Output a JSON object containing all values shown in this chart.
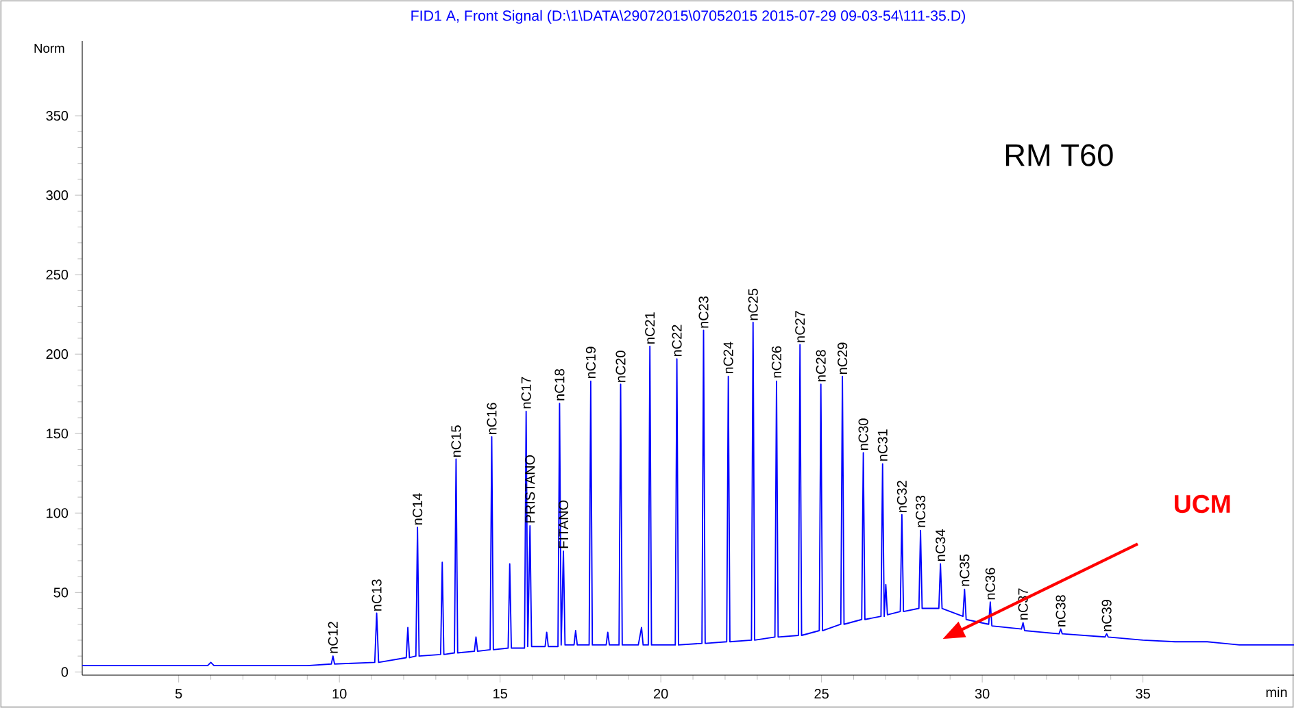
{
  "chart_data": {
    "type": "line",
    "title": "FID1 A, Front Signal (D:\\1\\DATA\\29072015\\07052015 2015-07-29 09-03-54\\111-35.D)",
    "xlabel": "min",
    "ylabel": "Norm",
    "xlim": [
      2,
      39.7
    ],
    "ylim": [
      -2,
      397
    ],
    "xticks": [
      5,
      10,
      15,
      20,
      25,
      30,
      35
    ],
    "yticks": [
      0,
      50,
      100,
      150,
      200,
      250,
      300,
      350
    ],
    "grid": false,
    "marker": "none",
    "series": [
      {
        "color": "#0000ff",
        "x": [
          2,
          5.9,
          6.0,
          6.1,
          9,
          9.75,
          9.8,
          9.85,
          11.1,
          11.16,
          11.22,
          12.08,
          12.13,
          12.18,
          12.38,
          12.43,
          12.48,
          13.15,
          13.2,
          13.25,
          13.58,
          13.63,
          13.68,
          14.2,
          14.25,
          14.3,
          14.69,
          14.74,
          14.79,
          15.25,
          15.3,
          15.35,
          15.76,
          15.81,
          15.86,
          15.93,
          15.98,
          16.4,
          16.45,
          16.5,
          16.8,
          16.85,
          16.9,
          16.97,
          17.02,
          17.3,
          17.35,
          17.4,
          17.77,
          17.82,
          17.87,
          18.3,
          18.35,
          18.4,
          18.7,
          18.75,
          18.8,
          19.3,
          19.4,
          19.45,
          19.61,
          19.66,
          19.71,
          20.45,
          20.5,
          20.55,
          21.28,
          21.33,
          21.38,
          22.05,
          22.1,
          22.15,
          22.82,
          22.87,
          22.92,
          23.55,
          23.6,
          23.65,
          24.28,
          24.33,
          24.38,
          24.93,
          24.98,
          25.03,
          25.6,
          25.65,
          25.7,
          26.25,
          26.3,
          26.35,
          26.85,
          26.9,
          26.95,
          27.0,
          27.05,
          27.45,
          27.5,
          27.55,
          28.03,
          28.08,
          28.13,
          28.65,
          28.7,
          28.75,
          29.4,
          29.45,
          29.5,
          30.2,
          30.25,
          30.3,
          31.22,
          31.27,
          31.32,
          32.39,
          32.44,
          32.49,
          33.82,
          33.87,
          33.92,
          35,
          36,
          37,
          38,
          39.7
        ],
        "values": [
          4,
          4,
          6,
          4,
          4,
          5,
          10,
          5,
          6,
          37,
          6,
          9,
          28,
          9,
          10,
          91,
          10,
          11,
          69,
          11,
          12,
          134,
          12,
          13,
          22,
          13,
          14,
          148,
          14,
          15,
          68,
          15,
          15,
          164,
          16,
          92,
          16,
          16,
          25,
          16,
          16,
          169,
          17,
          76,
          17,
          17,
          26,
          17,
          17,
          183,
          17,
          17,
          25,
          17,
          17,
          181,
          17,
          17,
          28,
          17,
          17,
          205,
          17,
          17,
          197,
          17,
          18,
          215,
          18,
          19,
          186,
          19,
          20,
          220,
          20,
          22,
          183,
          22,
          23,
          206,
          23,
          26,
          181,
          26,
          30,
          186,
          30,
          33,
          138,
          33,
          35,
          131,
          35,
          55,
          36,
          38,
          99,
          38,
          40,
          89,
          40,
          40,
          68,
          40,
          35,
          52,
          33,
          30,
          44,
          29,
          27,
          31,
          26,
          24,
          27,
          24,
          22,
          24,
          22,
          20,
          19,
          19,
          17,
          17
        ]
      }
    ],
    "annotations": [
      {
        "text": "nC12",
        "x": 9.8,
        "y": 10
      },
      {
        "text": "nC13",
        "x": 11.16,
        "y": 36.6
      },
      {
        "text": "nC14",
        "x": 12.43,
        "y": 90.8
      },
      {
        "text": "nC15",
        "x": 13.63,
        "y": 133.5
      },
      {
        "text": "nC16",
        "x": 14.74,
        "y": 147.7
      },
      {
        "text": "nC17",
        "x": 15.81,
        "y": 164
      },
      {
        "text": "PRISTANO",
        "x": 15.93,
        "y": 92
      },
      {
        "text": "nC18",
        "x": 16.85,
        "y": 169
      },
      {
        "text": "FITANO",
        "x": 16.97,
        "y": 76
      },
      {
        "text": "nC19",
        "x": 17.82,
        "y": 183
      },
      {
        "text": "nC20",
        "x": 18.75,
        "y": 180.5
      },
      {
        "text": "nC21",
        "x": 19.66,
        "y": 204.7
      },
      {
        "text": "nC22",
        "x": 20.5,
        "y": 196.8
      },
      {
        "text": "nC23",
        "x": 21.33,
        "y": 214.7
      },
      {
        "text": "nC24",
        "x": 22.1,
        "y": 186
      },
      {
        "text": "nC25",
        "x": 22.87,
        "y": 219.5
      },
      {
        "text": "nC26",
        "x": 23.6,
        "y": 183.3
      },
      {
        "text": "nC27",
        "x": 24.33,
        "y": 205.6
      },
      {
        "text": "nC28",
        "x": 24.98,
        "y": 181
      },
      {
        "text": "nC29",
        "x": 25.65,
        "y": 185.6
      },
      {
        "text": "nC30",
        "x": 26.3,
        "y": 137.8
      },
      {
        "text": "nC31",
        "x": 26.9,
        "y": 131
      },
      {
        "text": "nC32",
        "x": 27.5,
        "y": 98.7
      },
      {
        "text": "nC33",
        "x": 28.08,
        "y": 89.3
      },
      {
        "text": "nC34",
        "x": 28.7,
        "y": 68
      },
      {
        "text": "nC35",
        "x": 29.45,
        "y": 52.3
      },
      {
        "text": "nC36",
        "x": 30.25,
        "y": 43.8
      },
      {
        "text": "nC37",
        "x": 31.27,
        "y": 31
      },
      {
        "text": "nC38",
        "x": 32.44,
        "y": 26.7
      },
      {
        "text": "nC39",
        "x": 33.87,
        "y": 23.8
      },
      "RM T60",
      "UCM"
    ]
  }
}
